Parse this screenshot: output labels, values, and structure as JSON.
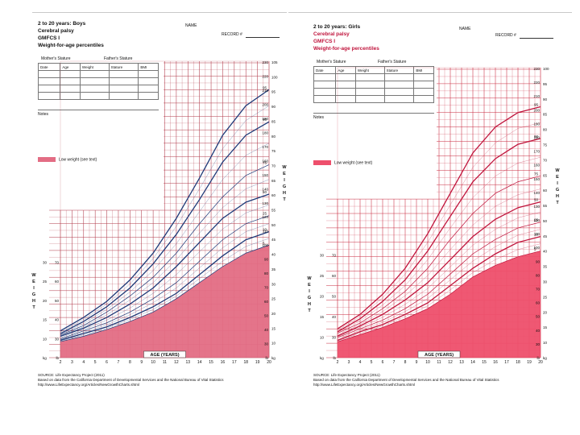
{
  "charts": [
    {
      "id": "boys",
      "title": "2 to 20 years: Boys",
      "subtitle1": "Cerebral palsy",
      "subtitle2": "GMFCS I",
      "subtitle3": "Weight-for-age percentiles",
      "name_label": "NAME",
      "record_label": "RECORD #",
      "mothers_stature": "Mother's Stature",
      "fathers_stature": "Father's Stature",
      "table_headers": [
        "Date",
        "Age",
        "Weight",
        "Stature",
        "BMI"
      ],
      "notes_label": "Notes",
      "legend_label": "Low weight (see text)",
      "axis_title": "AGE (YEARS)",
      "weight_side_label": "WEIGHT",
      "kg_label": "kg",
      "lb_label": "lb",
      "source_line1": "SOURCE: Life Expectancy Project (2011)",
      "source_line2": "Based on data from the California Department of Developmental Services and the National Bureau of Vital Statistics",
      "source_line3": "http://www.LifeExpectancy.org/Articles/NewGrowthCharts.shtml",
      "line_color": "#1f3a78",
      "area_color": "#e36d84",
      "grid_color": "#b23a4a"
    },
    {
      "id": "girls",
      "title": "2 to 20 years: Girls",
      "subtitle1": "Cerebral palsy",
      "subtitle2": "GMFCS I",
      "subtitle3": "Weight-for-age percentiles",
      "name_label": "NAME",
      "record_label": "RECORD #",
      "mothers_stature": "Mother's Stature",
      "fathers_stature": "Father's Stature",
      "table_headers": [
        "Date",
        "Age",
        "Weight",
        "Stature",
        "BMI"
      ],
      "notes_label": "Notes",
      "legend_label": "Low weight (see text)",
      "axis_title": "AGE (YEARS)",
      "weight_side_label": "WEIGHT",
      "kg_label": "kg",
      "lb_label": "lb",
      "source_line1": "SOURCE: Life Expectancy Project (2011)",
      "source_line2": "Based on data from the California Department of Developmental Services and the National Bureau of Vital Statistics",
      "source_line3": "http://www.LifeExpectancy.org/Articles/NewGrowthCharts.shtml",
      "line_color": "#c0143c",
      "area_color": "#ee4f6c",
      "grid_color": "#c8283e"
    }
  ],
  "chart_data": [
    {
      "type": "line",
      "title": "2 to 20 years: Boys",
      "xlabel": "AGE (YEARS)",
      "ylabel": "WEIGHT",
      "x": [
        2,
        4,
        6,
        8,
        10,
        12,
        14,
        16,
        18,
        20
      ],
      "xlim": [
        2,
        20
      ],
      "ylim": [
        5,
        115
      ],
      "x_ticks": [
        "2",
        "3",
        "4",
        "5",
        "6",
        "7",
        "8",
        "9",
        "10",
        "11",
        "12",
        "13",
        "14",
        "15",
        "16",
        "17",
        "18",
        "19",
        "20"
      ],
      "kg_ticks_right": [
        "105",
        "100",
        "95",
        "90",
        "85",
        "80",
        "75",
        "70",
        "65",
        "60",
        "55",
        "50",
        "45",
        "40",
        "35",
        "30",
        "25",
        "20",
        "15",
        "10",
        "kg"
      ],
      "lb_ticks_right": [
        "230",
        "220",
        "210",
        "200",
        "190",
        "180",
        "170",
        "160",
        "150",
        "140",
        "130",
        "120",
        "110",
        "100",
        "90",
        "80",
        "70",
        "60",
        "50",
        "40",
        "30",
        "lb"
      ],
      "kg_ticks_left": [
        "30",
        "25",
        "20",
        "15",
        "10",
        "kg"
      ],
      "lb_ticks_left": [
        "70",
        "60",
        "50",
        "40",
        "30",
        "lb"
      ],
      "percentile_labels": [
        "95",
        "90",
        "75",
        "50",
        "25",
        "10",
        "5"
      ],
      "series": [
        {
          "name": "95",
          "values": [
            15,
            20,
            26,
            34,
            44,
            57,
            72,
            88,
            99,
            105
          ]
        },
        {
          "name": "90",
          "values": [
            14,
            18.5,
            24,
            31,
            40,
            51,
            64,
            78,
            88,
            93
          ]
        },
        {
          "name": "75",
          "values": [
            13.5,
            17,
            22,
            28,
            35,
            44,
            55,
            65,
            73,
            77
          ]
        },
        {
          "name": "50",
          "values": [
            13,
            16,
            20,
            25,
            31,
            39,
            48,
            57,
            63,
            66
          ]
        },
        {
          "name": "25",
          "values": [
            12,
            15,
            18,
            22,
            27,
            33,
            41,
            49,
            55,
            58
          ]
        },
        {
          "name": "10",
          "values": [
            11.5,
            14,
            16.5,
            20,
            24,
            29,
            36,
            43,
            49,
            52
          ]
        },
        {
          "name": "5",
          "values": [
            11,
            13,
            15.5,
            18.5,
            22,
            27,
            33,
            39,
            44,
            47
          ]
        }
      ],
      "low_weight_area": [
        11,
        13,
        15.5,
        18.5,
        22,
        27,
        33,
        39,
        44,
        47
      ]
    },
    {
      "type": "line",
      "title": "2 to 20 years: Girls",
      "xlabel": "AGE (YEARS)",
      "ylabel": "WEIGHT",
      "x": [
        2,
        4,
        6,
        8,
        10,
        12,
        14,
        16,
        18,
        20
      ],
      "xlim": [
        2,
        20
      ],
      "ylim": [
        5,
        105
      ],
      "x_ticks": [
        "2",
        "3",
        "4",
        "5",
        "6",
        "7",
        "8",
        "9",
        "10",
        "11",
        "12",
        "13",
        "14",
        "15",
        "16",
        "17",
        "18",
        "19",
        "20"
      ],
      "kg_ticks_right": [
        "100",
        "95",
        "90",
        "85",
        "80",
        "75",
        "70",
        "65",
        "60",
        "55",
        "50",
        "45",
        "40",
        "35",
        "30",
        "25",
        "20",
        "15",
        "10",
        "kg"
      ],
      "lb_ticks_right": [
        "230",
        "220",
        "210",
        "200",
        "190",
        "180",
        "170",
        "160",
        "150",
        "140",
        "130",
        "120",
        "110",
        "100",
        "90",
        "80",
        "70",
        "60",
        "50",
        "40",
        "30",
        "lb"
      ],
      "kg_ticks_left": [
        "30",
        "25",
        "20",
        "15",
        "10",
        "kg"
      ],
      "lb_ticks_left": [
        "70",
        "60",
        "50",
        "40",
        "30",
        "lb"
      ],
      "percentile_labels": [
        "95",
        "90",
        "75",
        "50",
        "25",
        "10",
        "5"
      ],
      "series": [
        {
          "name": "95",
          "values": [
            15,
            20,
            27,
            36,
            48,
            62,
            76,
            85,
            90,
            92
          ]
        },
        {
          "name": "90",
          "values": [
            14,
            18.5,
            24.5,
            32,
            42,
            54,
            66,
            74,
            79,
            81
          ]
        },
        {
          "name": "75",
          "values": [
            13.5,
            17,
            22,
            28,
            36,
            46,
            55,
            62,
            66,
            68
          ]
        },
        {
          "name": "50",
          "values": [
            12.5,
            16,
            20,
            25,
            31,
            39,
            47,
            53,
            57,
            59
          ]
        },
        {
          "name": "25",
          "values": [
            12,
            15,
            18,
            22,
            27,
            34,
            41,
            46,
            50,
            52
          ]
        },
        {
          "name": "10",
          "values": [
            11,
            14,
            16.5,
            20,
            24,
            30,
            36,
            41,
            45,
            47
          ]
        },
        {
          "name": "5",
          "values": [
            10.5,
            13,
            15.5,
            18.5,
            22,
            27,
            33,
            37,
            40,
            42
          ]
        }
      ],
      "low_weight_area": [
        10.5,
        13,
        15.5,
        18.5,
        22,
        27,
        33,
        37,
        40,
        42
      ]
    }
  ]
}
